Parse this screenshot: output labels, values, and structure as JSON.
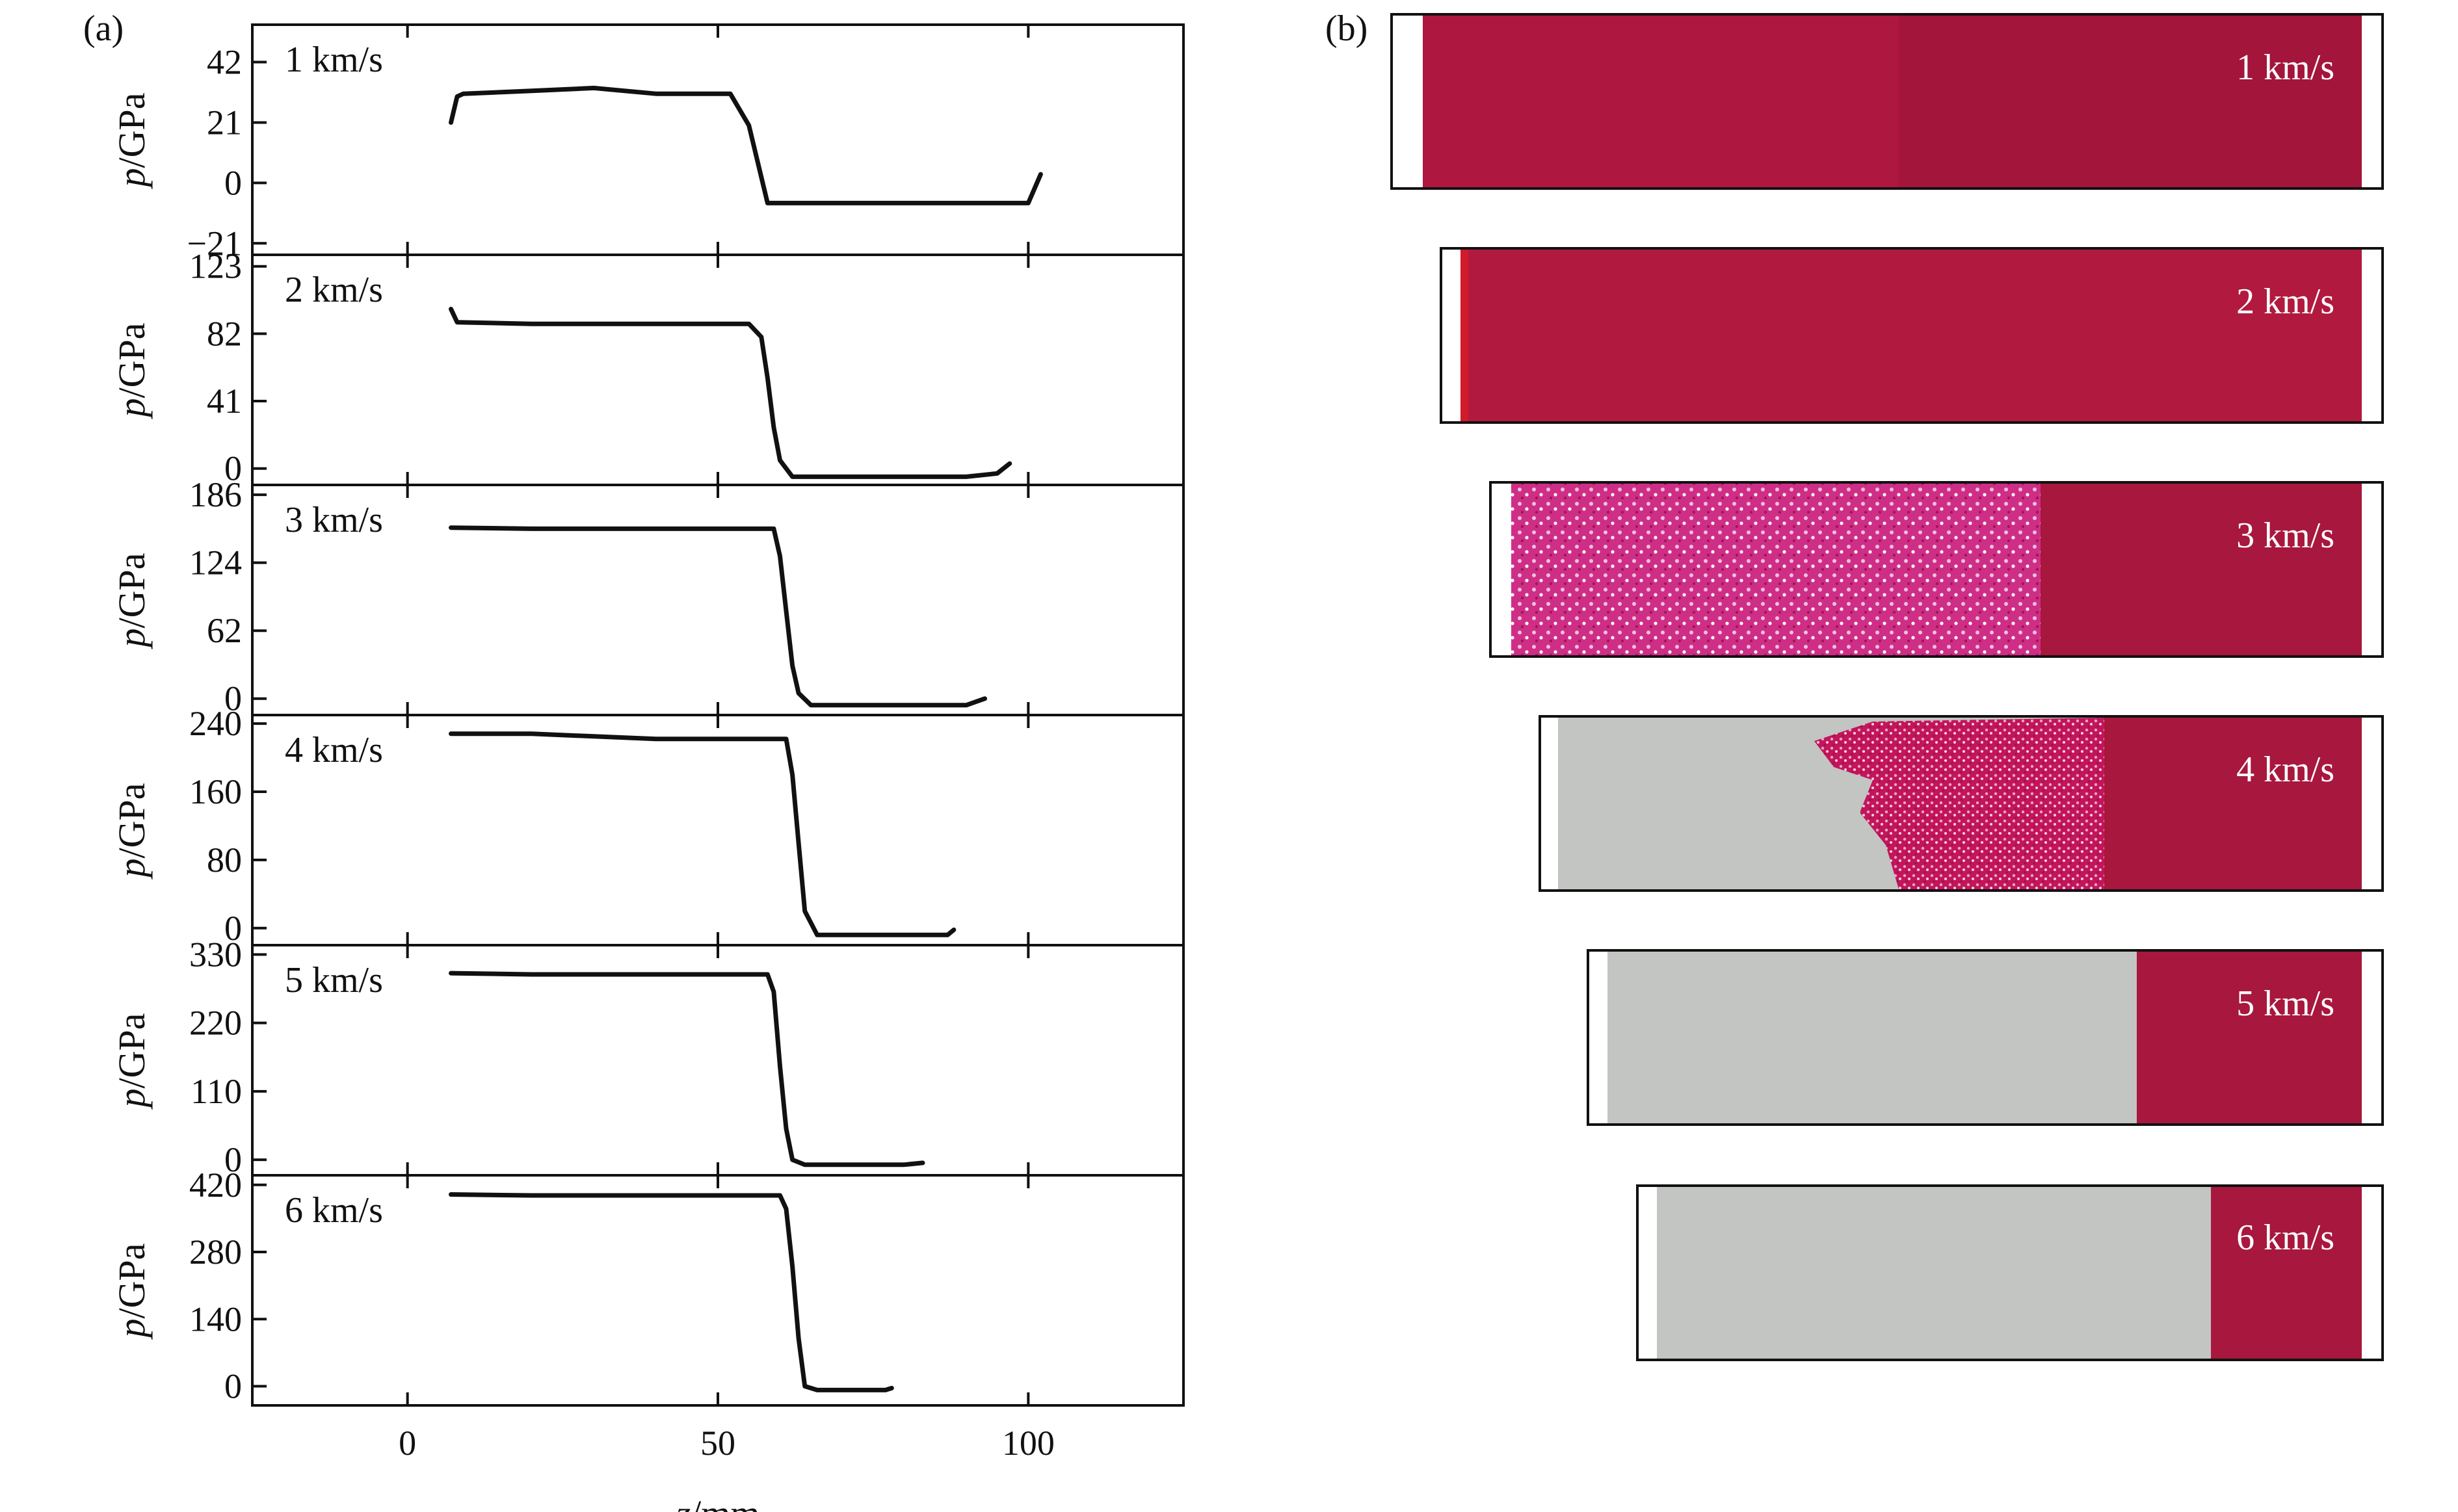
{
  "figure": {
    "panel_a_label": "(a)",
    "panel_b_label": "(b)",
    "colors": {
      "curve": "#111111",
      "frame": "#111111",
      "shocked_red": "#b0163f",
      "unshocked_red": "#a8173d",
      "gray_phase": "#c2c5c2",
      "mixed_pink": "#d8368a"
    }
  },
  "chart_data": [
    {
      "type": "line",
      "label": "1 km/s",
      "ylabel_italic": "p",
      "ylabel_rest": "/GPa",
      "yticks": [
        -21,
        0,
        21,
        42
      ],
      "ytick_labels": [
        "−21",
        "0",
        "21",
        "42"
      ],
      "ylim": [
        -25,
        55
      ],
      "xlim": [
        -25,
        125
      ],
      "series": [
        {
          "x": [
            7,
            8,
            9,
            20,
            30,
            40,
            52,
            55,
            57,
            58,
            60,
            70,
            80,
            90,
            100,
            101,
            102
          ],
          "y": [
            21,
            30,
            31,
            32,
            33,
            31,
            31,
            20,
            2,
            -7,
            -7,
            -7,
            -7,
            -7,
            -7,
            -2,
            3
          ]
        }
      ]
    },
    {
      "type": "line",
      "label": "2 km/s",
      "ylabel_italic": "p",
      "ylabel_rest": "/GPa",
      "yticks": [
        0,
        41,
        82,
        123
      ],
      "ytick_labels": [
        "0",
        "41",
        "82",
        "123"
      ],
      "ylim": [
        -10,
        130
      ],
      "xlim": [
        -25,
        125
      ],
      "series": [
        {
          "x": [
            7,
            8,
            20,
            40,
            50,
            55,
            57,
            58,
            59,
            60,
            62,
            70,
            80,
            90,
            95,
            97
          ],
          "y": [
            97,
            89,
            88,
            88,
            88,
            88,
            80,
            55,
            25,
            5,
            -5,
            -5,
            -5,
            -5,
            -3,
            3
          ]
        }
      ]
    },
    {
      "type": "line",
      "label": "3 km/s",
      "ylabel_italic": "p",
      "ylabel_rest": "/GPa",
      "yticks": [
        0,
        62,
        124,
        186
      ],
      "ytick_labels": [
        "0",
        "62",
        "124",
        "186"
      ],
      "ylim": [
        -15,
        195
      ],
      "xlim": [
        -25,
        125
      ],
      "series": [
        {
          "x": [
            7,
            20,
            40,
            50,
            59,
            60,
            61,
            62,
            63,
            65,
            70,
            80,
            90,
            93
          ],
          "y": [
            156,
            155,
            155,
            155,
            155,
            130,
            80,
            30,
            5,
            -6,
            -6,
            -6,
            -6,
            0
          ]
        }
      ]
    },
    {
      "type": "line",
      "label": "4 km/s",
      "ylabel_italic": "p",
      "ylabel_rest": "/GPa",
      "yticks": [
        0,
        80,
        160,
        240
      ],
      "ytick_labels": [
        "0",
        "80",
        "160",
        "240"
      ],
      "ylim": [
        -20,
        250
      ],
      "xlim": [
        -25,
        125
      ],
      "series": [
        {
          "x": [
            7,
            20,
            30,
            40,
            50,
            61,
            62,
            63,
            64,
            66,
            70,
            80,
            87,
            88
          ],
          "y": [
            228,
            228,
            225,
            222,
            222,
            222,
            180,
            100,
            20,
            -8,
            -8,
            -8,
            -8,
            -2
          ]
        }
      ]
    },
    {
      "type": "line",
      "label": "5 km/s",
      "ylabel_italic": "p",
      "ylabel_rest": "/GPa",
      "yticks": [
        0,
        110,
        220,
        330
      ],
      "ytick_labels": [
        "0",
        "110",
        "220",
        "330"
      ],
      "ylim": [
        -25,
        345
      ],
      "xlim": [
        -25,
        125
      ],
      "series": [
        {
          "x": [
            7,
            20,
            40,
            58,
            59,
            60,
            61,
            62,
            64,
            70,
            80,
            83
          ],
          "y": [
            300,
            298,
            298,
            298,
            270,
            150,
            50,
            0,
            -8,
            -8,
            -8,
            -5
          ]
        }
      ]
    },
    {
      "type": "line",
      "label": "6 km/s",
      "ylabel_italic": "p",
      "ylabel_rest": "/GPa",
      "yticks": [
        0,
        140,
        280,
        420
      ],
      "ytick_labels": [
        "0",
        "140",
        "280",
        "420"
      ],
      "ylim": [
        -40,
        440
      ],
      "xlim": [
        -25,
        125
      ],
      "series": [
        {
          "x": [
            7,
            20,
            40,
            60,
            61,
            62,
            63,
            64,
            66,
            70,
            77,
            78
          ],
          "y": [
            400,
            398,
            398,
            398,
            370,
            250,
            100,
            0,
            -8,
            -8,
            -8,
            -4
          ]
        }
      ]
    }
  ],
  "x_axis": {
    "ticks": [
      0,
      50,
      100
    ],
    "tick_labels": [
      "0",
      "50",
      "100"
    ],
    "label_italic": "z",
    "label_rest": "/mm"
  },
  "panel_b": [
    {
      "label": "1 km/s"
    },
    {
      "label": "2 km/s"
    },
    {
      "label": "3 km/s"
    },
    {
      "label": "4 km/s"
    },
    {
      "label": "5 km/s"
    },
    {
      "label": "6 km/s"
    }
  ]
}
